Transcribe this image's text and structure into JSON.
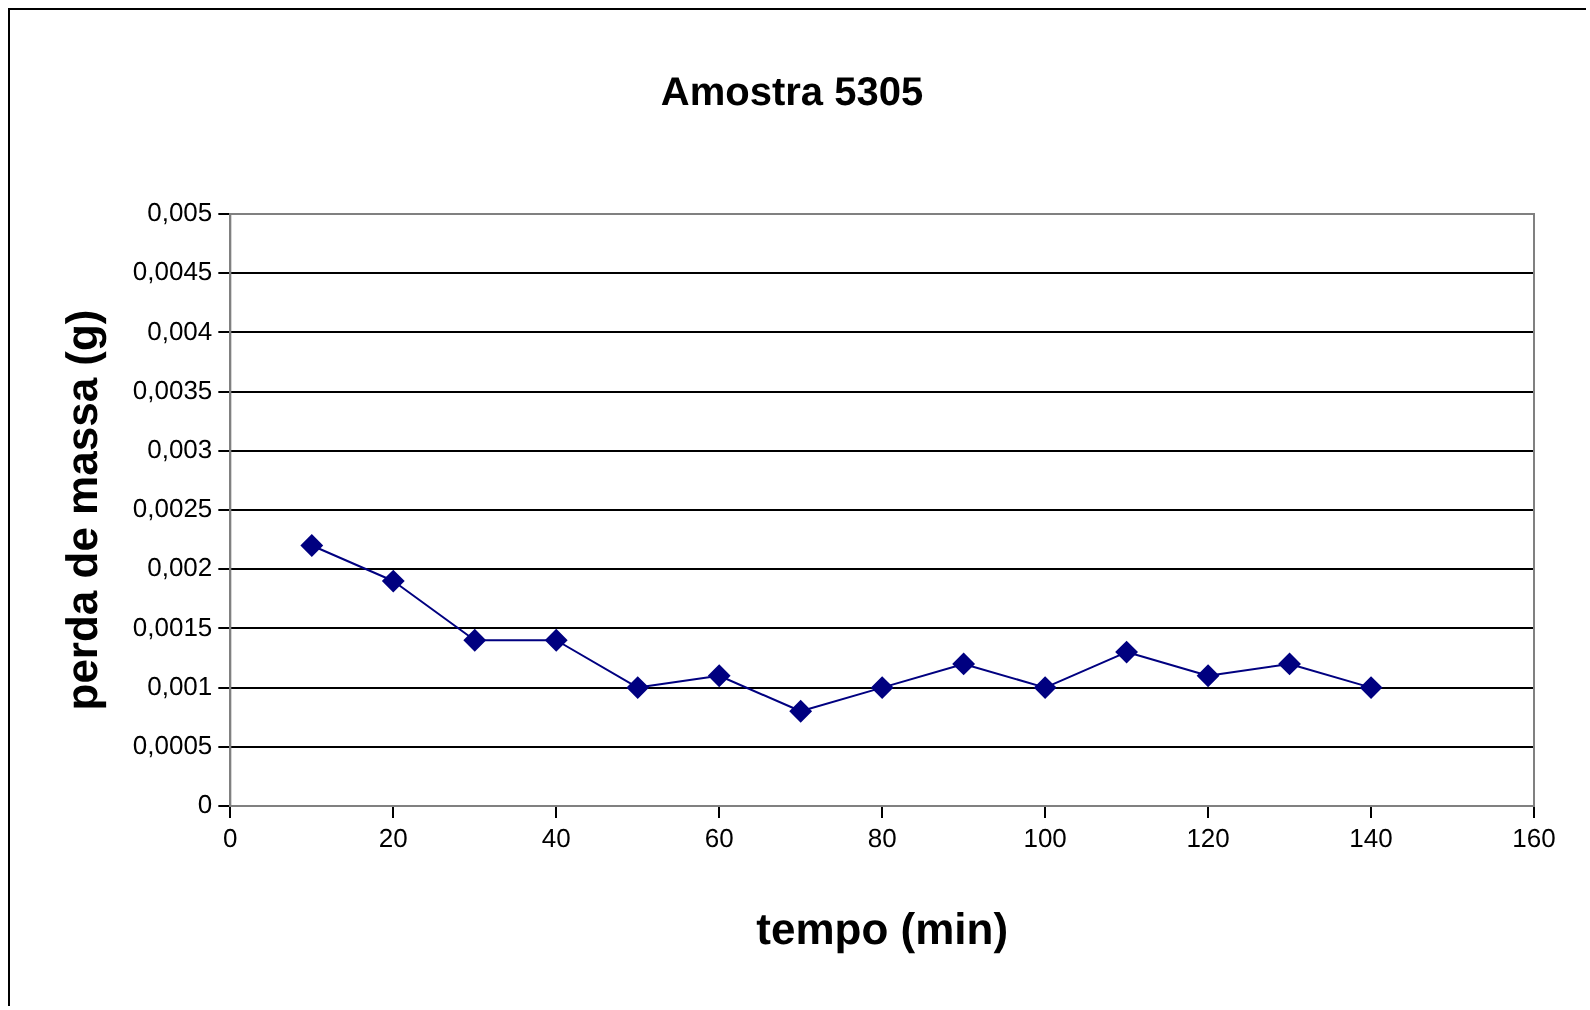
{
  "chart_data": {
    "type": "line",
    "title": "Amostra 5305",
    "xlabel": "tempo (min)",
    "ylabel": "perda de massa (g)",
    "x": [
      10,
      20,
      30,
      40,
      50,
      60,
      70,
      80,
      90,
      100,
      110,
      120,
      130,
      140
    ],
    "series": [
      {
        "color": "#000080",
        "values": [
          0.0022,
          0.0019,
          0.0014,
          0.0014,
          0.001,
          0.0011,
          0.0008,
          0.001,
          0.0012,
          0.001,
          0.0013,
          0.0011,
          0.0012,
          0.001
        ]
      }
    ],
    "xlim": [
      0,
      160
    ],
    "xticks": [
      0,
      20,
      40,
      60,
      80,
      100,
      120,
      140,
      160
    ],
    "ylim": [
      0,
      0.005
    ],
    "yticks": [
      {
        "value": 0,
        "label": "0"
      },
      {
        "value": 0.0005,
        "label": "0,0005"
      },
      {
        "value": 0.001,
        "label": "0,001"
      },
      {
        "value": 0.0015,
        "label": "0,0015"
      },
      {
        "value": 0.002,
        "label": "0,002"
      },
      {
        "value": 0.0025,
        "label": "0,0025"
      },
      {
        "value": 0.003,
        "label": "0,003"
      },
      {
        "value": 0.0035,
        "label": "0,0035"
      },
      {
        "value": 0.004,
        "label": "0,004"
      },
      {
        "value": 0.0045,
        "label": "0,0045"
      },
      {
        "value": 0.005,
        "label": "0,005"
      }
    ],
    "grid": "y",
    "legend": false,
    "marker": "diamond",
    "line_style": "solid"
  }
}
